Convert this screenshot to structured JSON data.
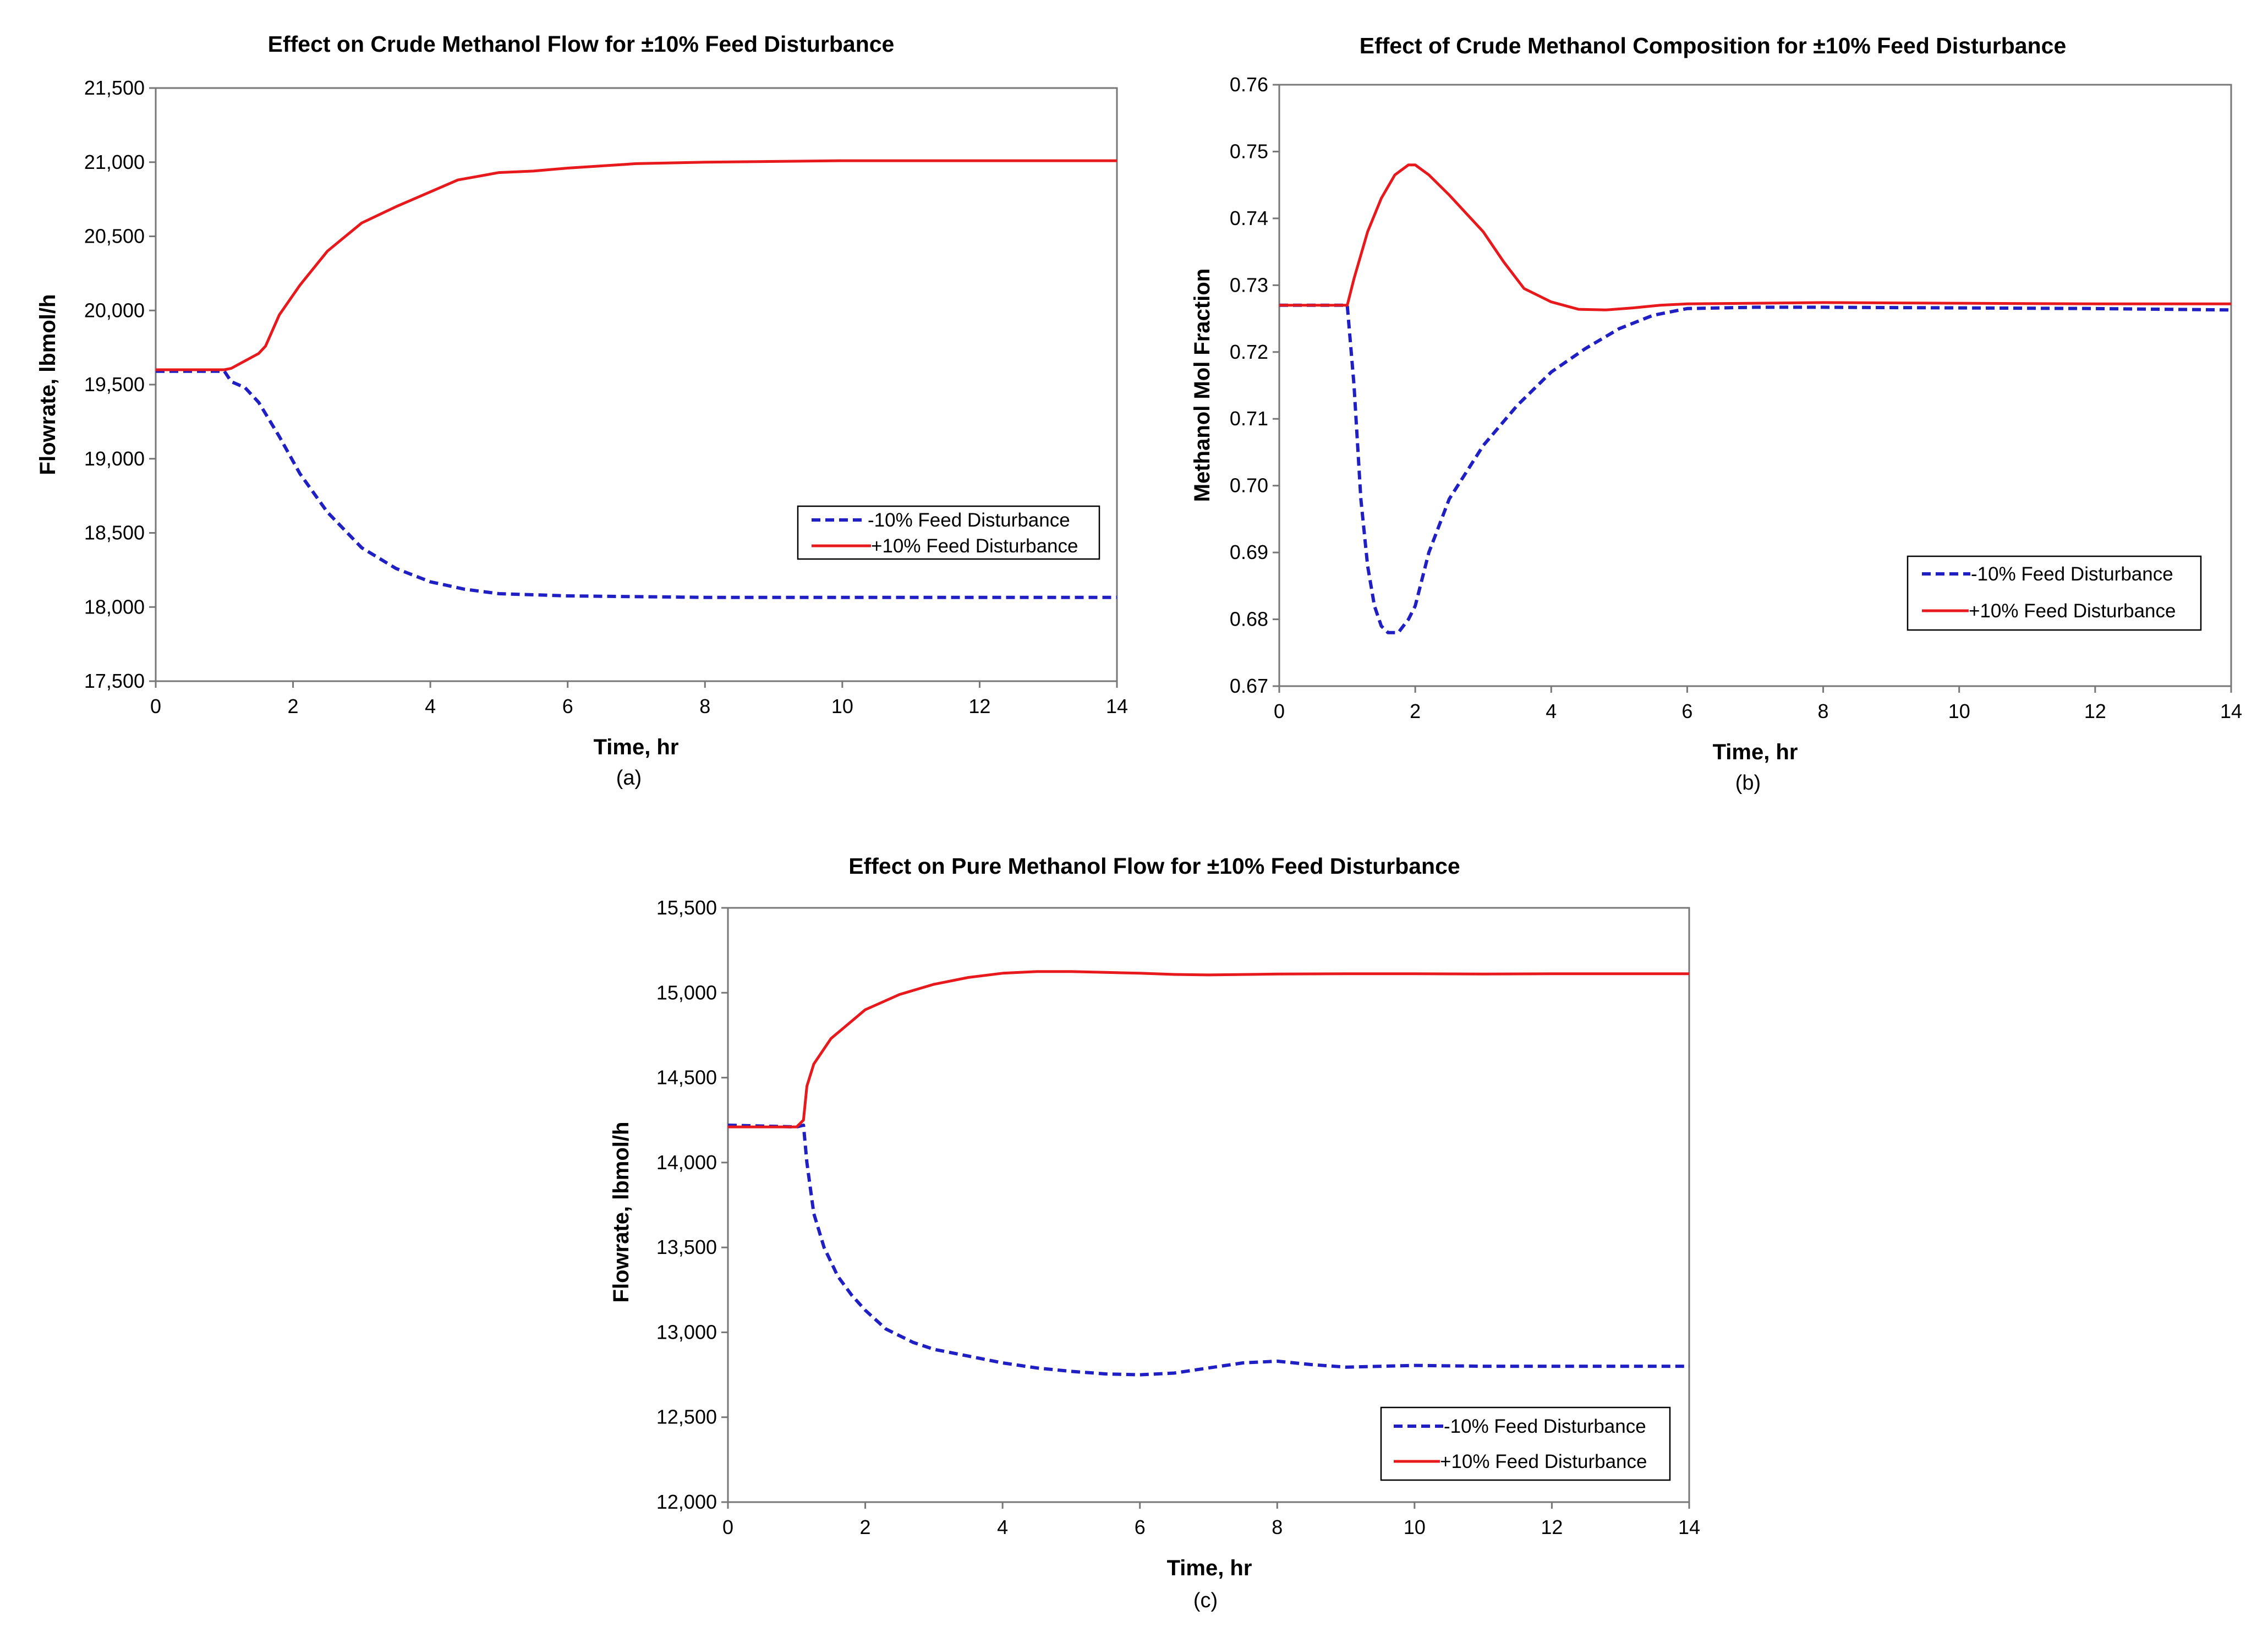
{
  "colors": {
    "minus": "#1f1fc4",
    "plus": "#e8191c",
    "axis": "#777777",
    "background": "#ffffff"
  },
  "chart_data": [
    {
      "id": "a",
      "type": "line",
      "title": "Effect on Crude Methanol Flow for ±10% Feed Disturbance",
      "xlabel": "Time, hr",
      "ylabel": "Flowrate, lbmol/h",
      "caption": "(a)",
      "xlim": [
        0,
        14
      ],
      "ylim": [
        17500,
        21500
      ],
      "x_ticks": [
        0,
        2,
        4,
        6,
        8,
        10,
        12,
        14
      ],
      "x_tick_labels": [
        "0",
        "2",
        "4",
        "6",
        "8",
        "10",
        "12",
        "14"
      ],
      "y_ticks": [
        17500,
        18000,
        18500,
        19000,
        19500,
        20000,
        20500,
        21000,
        21500
      ],
      "y_tick_labels": [
        "17,500",
        "18,000",
        "18,500",
        "19,000",
        "19,500",
        "20,000",
        "20,500",
        "21,000",
        "21,500"
      ],
      "legend_position": "center-right",
      "series": [
        {
          "name": "-10% Feed Disturbance",
          "style": "dashed",
          "color": "#1f1fc4",
          "x": [
            0,
            1.0,
            1.1,
            1.3,
            1.5,
            1.8,
            2.1,
            2.5,
            3.0,
            3.5,
            4.0,
            4.5,
            5.0,
            6.0,
            7.0,
            8.0,
            10.0,
            12.0,
            14.0
          ],
          "y": [
            19590,
            19590,
            19520,
            19480,
            19380,
            19150,
            18900,
            18640,
            18400,
            18260,
            18170,
            18120,
            18090,
            18075,
            18070,
            18065,
            18065,
            18065,
            18065
          ]
        },
        {
          "name": "+10% Feed Disturbance",
          "style": "solid",
          "color": "#e8191c",
          "x": [
            0,
            1.0,
            1.1,
            1.3,
            1.5,
            1.6,
            1.8,
            2.1,
            2.5,
            3.0,
            3.5,
            4.0,
            4.4,
            5.0,
            5.5,
            6.0,
            7.0,
            8.0,
            10.0,
            12.0,
            14.0
          ],
          "y": [
            19600,
            19600,
            19610,
            19660,
            19710,
            19760,
            19970,
            20170,
            20400,
            20590,
            20700,
            20800,
            20880,
            20930,
            20940,
            20960,
            20990,
            21000,
            21010,
            21010,
            21010
          ]
        }
      ]
    },
    {
      "id": "b",
      "type": "line",
      "title": "Effect of Crude Methanol Composition for ±10% Feed Disturbance",
      "xlabel": "Time, hr",
      "ylabel": "Methanol Mol Fraction",
      "caption": "(b)",
      "xlim": [
        0,
        14
      ],
      "ylim": [
        0.67,
        0.76
      ],
      "x_ticks": [
        0,
        2,
        4,
        6,
        8,
        10,
        12,
        14
      ],
      "x_tick_labels": [
        "0",
        "2",
        "4",
        "6",
        "8",
        "10",
        "12",
        "14"
      ],
      "y_ticks": [
        0.67,
        0.68,
        0.69,
        0.7,
        0.71,
        0.72,
        0.73,
        0.74,
        0.75,
        0.76
      ],
      "y_tick_labels": [
        "0.67",
        "0.68",
        "0.69",
        "0.70",
        "0.71",
        "0.72",
        "0.73",
        "0.74",
        "0.75",
        "0.76"
      ],
      "legend_position": "lower-right",
      "series": [
        {
          "name": "-10% Feed Disturbance",
          "style": "dashed",
          "color": "#1f1fc4",
          "x": [
            0,
            1.0,
            1.1,
            1.2,
            1.3,
            1.4,
            1.5,
            1.6,
            1.75,
            1.9,
            2.0,
            2.2,
            2.5,
            3.0,
            3.5,
            4.0,
            4.5,
            5.0,
            5.5,
            6.0,
            7.0,
            8.0,
            10.0,
            12.0,
            14.0
          ],
          "y": [
            0.727,
            0.727,
            0.715,
            0.698,
            0.688,
            0.682,
            0.679,
            0.678,
            0.678,
            0.68,
            0.682,
            0.69,
            0.698,
            0.706,
            0.712,
            0.717,
            0.7205,
            0.7235,
            0.7255,
            0.7265,
            0.7267,
            0.7267,
            0.7266,
            0.7265,
            0.7263
          ]
        },
        {
          "name": "+10% Feed Disturbance",
          "style": "solid",
          "color": "#e8191c",
          "x": [
            0,
            1.0,
            1.1,
            1.3,
            1.5,
            1.7,
            1.9,
            2.0,
            2.2,
            2.5,
            3.0,
            3.3,
            3.6,
            4.0,
            4.4,
            4.8,
            5.2,
            5.6,
            6.0,
            7.0,
            8.0,
            10.0,
            12.0,
            14.0
          ],
          "y": [
            0.727,
            0.727,
            0.731,
            0.738,
            0.743,
            0.7465,
            0.748,
            0.748,
            0.7465,
            0.7435,
            0.738,
            0.7335,
            0.7295,
            0.7275,
            0.7264,
            0.7263,
            0.7266,
            0.727,
            0.7272,
            0.7273,
            0.7274,
            0.7273,
            0.7272,
            0.7272
          ]
        }
      ]
    },
    {
      "id": "c",
      "type": "line",
      "title": "Effect on Pure Methanol Flow for ±10% Feed Disturbance",
      "xlabel": "Time, hr",
      "ylabel": "Flowrate, lbmol/h",
      "caption": "(c)",
      "xlim": [
        0,
        14
      ],
      "ylim": [
        12000,
        15500
      ],
      "x_ticks": [
        0,
        2,
        4,
        6,
        8,
        10,
        12,
        14
      ],
      "x_tick_labels": [
        "0",
        "2",
        "4",
        "6",
        "8",
        "10",
        "12",
        "14"
      ],
      "y_ticks": [
        12000,
        12500,
        13000,
        13500,
        14000,
        14500,
        15000,
        15500
      ],
      "y_tick_labels": [
        "12,000",
        "12,500",
        "13,000",
        "13,500",
        "14,000",
        "14,500",
        "15,000",
        "15,500"
      ],
      "legend_position": "lower-right",
      "series": [
        {
          "name": "-10% Feed Disturbance",
          "style": "dashed",
          "color": "#1f1fc4",
          "x": [
            0,
            1.0,
            1.1,
            1.15,
            1.25,
            1.4,
            1.6,
            1.8,
            2.0,
            2.3,
            2.7,
            3.0,
            3.5,
            4.0,
            4.5,
            5.0,
            5.5,
            6.0,
            6.5,
            7.0,
            7.5,
            8.0,
            8.5,
            9.0,
            10.0,
            11.0,
            12.0,
            13.0,
            14.0
          ],
          "y": [
            14220,
            14210,
            14220,
            14000,
            13700,
            13500,
            13330,
            13220,
            13130,
            13020,
            12940,
            12900,
            12860,
            12820,
            12790,
            12770,
            12755,
            12750,
            12760,
            12790,
            12820,
            12830,
            12810,
            12795,
            12805,
            12800,
            12800,
            12800,
            12800
          ]
        },
        {
          "name": "+10% Feed Disturbance",
          "style": "solid",
          "color": "#e8191c",
          "x": [
            0,
            1.0,
            1.1,
            1.15,
            1.25,
            1.5,
            2.0,
            2.5,
            3.0,
            3.5,
            4.0,
            4.5,
            5.0,
            5.5,
            6.0,
            6.5,
            7.0,
            8.0,
            9.0,
            10.0,
            11.0,
            12.0,
            13.0,
            14.0
          ],
          "y": [
            14210,
            14210,
            14250,
            14450,
            14580,
            14730,
            14900,
            14990,
            15050,
            15090,
            15115,
            15125,
            15125,
            15120,
            15115,
            15108,
            15105,
            15110,
            15112,
            15112,
            15110,
            15112,
            15112,
            15112
          ]
        }
      ]
    }
  ]
}
